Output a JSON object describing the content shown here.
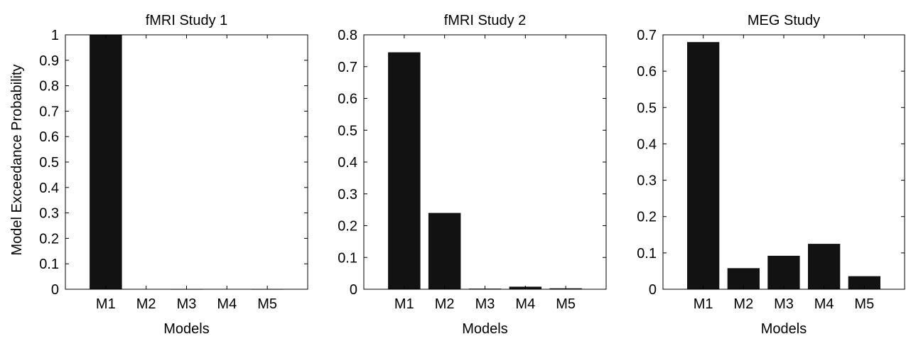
{
  "chart_data": [
    {
      "type": "bar",
      "title": "fMRI Study 1",
      "xlabel": "Models",
      "ylabel": "Model Exceedance Probability",
      "categories": [
        "M1",
        "M2",
        "M3",
        "M4",
        "M5"
      ],
      "values": [
        1.0,
        0.001,
        0.0,
        0.001,
        0.0
      ],
      "ylim": [
        0,
        1
      ],
      "yticks": [
        "0",
        "0.1",
        "0.2",
        "0.3",
        "0.4",
        "0.5",
        "0.6",
        "0.7",
        "0.8",
        "0.9",
        "1"
      ],
      "grid": false
    },
    {
      "type": "bar",
      "title": "fMRI Study 2",
      "xlabel": "Models",
      "ylabel": "",
      "categories": [
        "M1",
        "M2",
        "M3",
        "M4",
        "M5"
      ],
      "values": [
        0.745,
        0.24,
        0.002,
        0.008,
        0.003
      ],
      "ylim": [
        0,
        0.8
      ],
      "yticks": [
        "0",
        "0.1",
        "0.2",
        "0.3",
        "0.4",
        "0.5",
        "0.6",
        "0.7",
        "0.8"
      ],
      "grid": false
    },
    {
      "type": "bar",
      "title": "MEG Study",
      "xlabel": "Models",
      "ylabel": "",
      "categories": [
        "M1",
        "M2",
        "M3",
        "M4",
        "M5"
      ],
      "values": [
        0.68,
        0.058,
        0.092,
        0.125,
        0.036
      ],
      "ylim": [
        0,
        0.7
      ],
      "yticks": [
        "0",
        "0.1",
        "0.2",
        "0.3",
        "0.4",
        "0.5",
        "0.6",
        "0.7"
      ],
      "grid": false
    }
  ]
}
